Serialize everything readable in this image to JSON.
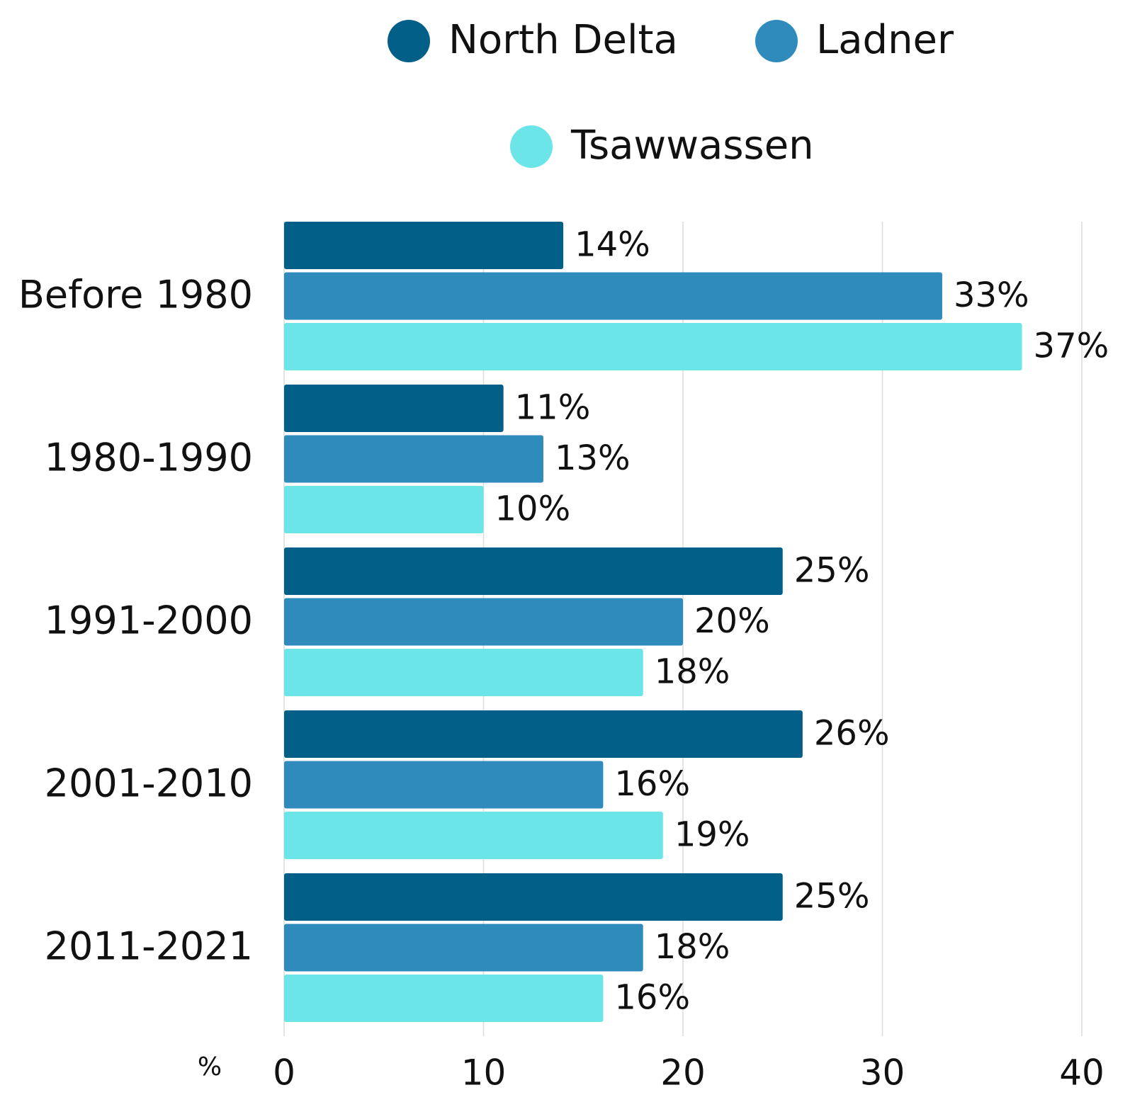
{
  "chart_data": {
    "type": "bar",
    "orientation": "horizontal",
    "categories": [
      "Before 1980",
      "1980-1990",
      "1991-2000",
      "2001-2010",
      "2011-2021"
    ],
    "series": [
      {
        "name": "North Delta",
        "color": "#025f87",
        "values": [
          14,
          11,
          25,
          26,
          25
        ],
        "value_labels": [
          "14%",
          "11%",
          "25%",
          "26%",
          "25%"
        ]
      },
      {
        "name": "Ladner",
        "color": "#2e8bbb",
        "values": [
          33,
          13,
          20,
          16,
          18
        ],
        "value_labels": [
          "33%",
          "13%",
          "20%",
          "16%",
          "18%"
        ]
      },
      {
        "name": "Tsawwassen",
        "color": "#6ce5e8",
        "values": [
          37,
          10,
          18,
          19,
          16
        ],
        "value_labels": [
          "37%",
          "10%",
          "18%",
          "19%",
          "16%"
        ]
      }
    ],
    "xlabel": "%",
    "xlim": [
      0,
      40
    ],
    "xticks": [
      0,
      10,
      20,
      30,
      40
    ],
    "grid": true
  }
}
